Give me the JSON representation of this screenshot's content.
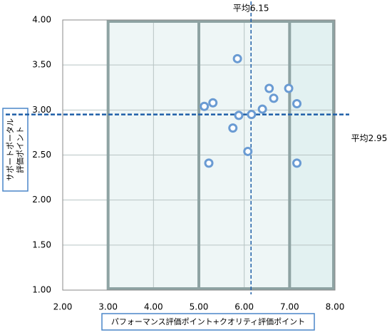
{
  "chart_data": {
    "type": "scatter",
    "xlabel": "パフォーマンス評価ポイント+クオリティ評価ポイント",
    "ylabel": [
      "サポートポータル",
      "評価ポイント"
    ],
    "color": "#6a9bd3",
    "x": [
      5.85,
      5.31,
      5.12,
      5.75,
      5.88,
      6.16,
      6.4,
      6.55,
      6.65,
      6.98,
      7.16,
      6.08,
      5.22,
      7.16
    ],
    "values": [
      3.57,
      3.08,
      3.04,
      2.8,
      2.94,
      2.95,
      3.01,
      3.24,
      3.13,
      3.24,
      3.07,
      2.54,
      2.41,
      2.41
    ],
    "xlim": [
      2,
      8
    ],
    "ylim": [
      1,
      4
    ],
    "xticks": [
      {
        "value": 2,
        "label": "2.00"
      },
      {
        "value": 3,
        "label": "3.00"
      },
      {
        "value": 4,
        "label": "4.00"
      },
      {
        "value": 5,
        "label": "5.00"
      },
      {
        "value": 6,
        "label": "6.00"
      },
      {
        "value": 7,
        "label": "7.00"
      },
      {
        "value": 8,
        "label": "8.00"
      }
    ],
    "yticks": [
      {
        "value": 1,
        "label": "1.00"
      },
      {
        "value": 1.5,
        "label": "1.50"
      },
      {
        "value": 2,
        "label": "2.00"
      },
      {
        "value": 2.5,
        "label": "2.50"
      },
      {
        "value": 3,
        "label": "3.00"
      },
      {
        "value": 3.5,
        "label": "3.50"
      },
      {
        "value": 4,
        "label": "4.00"
      }
    ],
    "grid": true,
    "mean_lines": [
      {
        "axis": "x",
        "value": 6.15,
        "label": "平均6.15",
        "color": "#1f5fa8"
      },
      {
        "axis": "y",
        "value": 2.95,
        "label": "平均2.95",
        "color": "#1f5fa8"
      }
    ]
  }
}
